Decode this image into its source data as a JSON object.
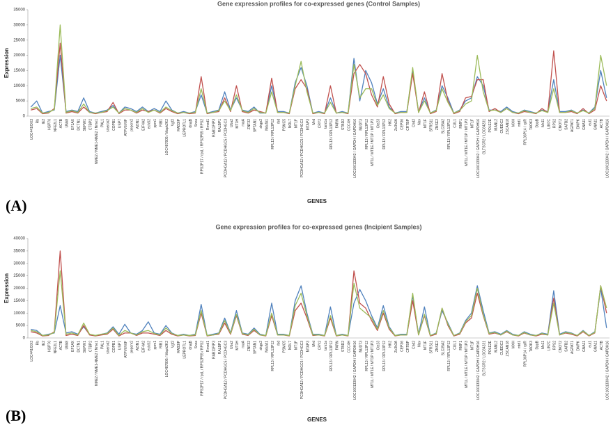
{
  "chart_data": [
    {
      "type": "line",
      "panel_label": "(A)",
      "title": "Gene expression profiles for co-expressed genes (Control Samples)",
      "y_label": "Expression",
      "x_label": "GENES",
      "categories": [
        "LOC441/DX3",
        "Rb",
        "IE2",
        "HSP70",
        "NFE2L1",
        "ACTB",
        "UNk8",
        "EF1AX",
        "DCTN1",
        "SEPW1",
        "CTBP2",
        "NME2 / NME1-NME2 / Nme1",
        "PAL1",
        "sinerok2",
        "COPB1",
        "USP7",
        "ATPV6V0F",
        "pepcrv2",
        "AZIN1",
        "EIF4A2",
        "echS2",
        "ppm1",
        "RIB1",
        "LOC487805 / Mapk2K2",
        "Vgf2",
        "RAB3IP",
        "LEPROTL1",
        "dnajB",
        "Snca",
        "RPS2P17 / rpsL / RPS2P55 / RPS2",
        "Rmnd1",
        "RAB11FIP3",
        "RALBP1",
        "PCDHGA12 / PCDHGC5 / PCDHGC3",
        "Uba2",
        "MT1H",
        "rnaA",
        "ZNF32",
        "SPTAN1",
        "akgp2",
        "NdufA1",
        "RPL13 / RPL13P12",
        "rbd",
        "PSMC5",
        "NOL7",
        "MT1F",
        "PCDHGA12 / PCDHGC5 / PCDHGC3",
        "MTAP3",
        "Mrd",
        "CRY2",
        "tars1a",
        "RPL13 / RPL13P12",
        "FARN",
        "STBD2",
        "CCC4H",
        "LOC100133042 / GAPDH / GAPDH16",
        "NUDT3",
        "RPL13 / RPL13P12",
        "MT1L / MT1E / MT1P / MT1P3",
        "Cte23",
        "RPL13 / RPL13P12",
        "HK2",
        "Zc3h3A",
        "CEP36",
        "CRTBP",
        "Chd2",
        "Nav",
        "MT1F",
        "SFRS11",
        "ZNSE2",
        "SLC35A2",
        "RPL13 / RPL13P12",
        "CUL1",
        "RMF1",
        "MT1L / MT1E / MT1P / MT1P3",
        "MT1F",
        "LOC100133042 / GAPDH / GAPDH16",
        "GLTSCR2 / LOC64231",
        "POLE2E",
        "MANL2",
        "CUEDC2",
        "ZSCAN18",
        "MXH",
        "mtd1",
        "RPL36P14 / rplR",
        "TAOK3",
        "DppB",
        "Mx11",
        "LIN7C",
        "RPS2",
        "CNOT2",
        "SAFB2",
        "AGPAT1",
        "DMPK",
        "GNA11",
        "eut1",
        "GNA11",
        "ACTB",
        "LOC100133042 / GAPDH / GAPDH16"
      ],
      "series": [
        {
          "color": "#4f81bd",
          "values": [
            3000,
            5000,
            1000,
            1500,
            2000,
            20000,
            1500,
            2000,
            1500,
            6000,
            1500,
            1000,
            1500,
            2000,
            3500,
            1000,
            3000,
            2500,
            1500,
            3000,
            1500,
            2500,
            1500,
            5000,
            2000,
            1000,
            1500,
            1000,
            1500,
            7000,
            1000,
            1500,
            2000,
            8000,
            2000,
            6000,
            2000,
            1500,
            3000,
            1000,
            1000,
            10000,
            1500,
            1500,
            1000,
            11000,
            16000,
            10000,
            1000,
            1500,
            1000,
            6000,
            1000,
            1500,
            1000,
            19000,
            5000,
            15000,
            11000,
            4000,
            9000,
            3000,
            1000,
            1500,
            1500,
            15000,
            1500,
            6000,
            1000,
            2000,
            10000,
            6000,
            1000,
            2000,
            5000,
            6000,
            13000,
            10000,
            2000,
            2000,
            1500,
            3000,
            1500,
            1000,
            2000,
            1500,
            1000,
            2000,
            1500,
            12000,
            1500,
            1500,
            2000,
            1000,
            2000,
            1000,
            3000,
            15000,
            6000
          ]
        },
        {
          "color": "#c0504d",
          "values": [
            2000,
            2500,
            800,
            1000,
            2500,
            24000,
            1000,
            1500,
            1000,
            3000,
            1200,
            800,
            1200,
            1500,
            4500,
            800,
            2000,
            2000,
            1000,
            2000,
            1500,
            2000,
            1000,
            2500,
            1500,
            800,
            1200,
            800,
            1000,
            13000,
            800,
            1200,
            1500,
            6000,
            1500,
            10000,
            1500,
            1000,
            2000,
            1500,
            1000,
            12500,
            1200,
            1200,
            800,
            9000,
            12000,
            9000,
            800,
            1200,
            800,
            10000,
            1000,
            1200,
            800,
            14000,
            17000,
            14000,
            7000,
            3000,
            13000,
            4000,
            800,
            1200,
            1200,
            14000,
            1200,
            8000,
            800,
            1500,
            14000,
            5000,
            800,
            1500,
            6000,
            6500,
            12000,
            12000,
            1500,
            2500,
            1200,
            2500,
            1200,
            800,
            1500,
            1200,
            800,
            2500,
            1200,
            21500,
            1200,
            1200,
            1500,
            800,
            2500,
            800,
            2000,
            10000,
            5000
          ]
        },
        {
          "color": "#9bbb59",
          "values": [
            2500,
            3000,
            1000,
            1200,
            2200,
            30000,
            1200,
            1800,
            1200,
            4000,
            1200,
            1000,
            1200,
            1800,
            3000,
            1000,
            2500,
            2000,
            1200,
            2500,
            1200,
            2000,
            1200,
            3000,
            1800,
            1000,
            1200,
            1000,
            1200,
            9000,
            1000,
            1200,
            1800,
            5000,
            1800,
            7000,
            1800,
            1200,
            2500,
            1200,
            1000,
            8000,
            1200,
            1200,
            1000,
            10000,
            18000,
            8000,
            1000,
            1200,
            1000,
            4500,
            1000,
            1200,
            1000,
            17000,
            6000,
            9000,
            9000,
            3500,
            7000,
            2500,
            1000,
            1200,
            1200,
            16000,
            1200,
            5000,
            1000,
            1800,
            9000,
            4500,
            1000,
            1800,
            4000,
            5000,
            20000,
            8000,
            1800,
            2000,
            1200,
            2500,
            1200,
            1000,
            1800,
            1200,
            1000,
            1800,
            1200,
            9000,
            1200,
            1200,
            1800,
            1000,
            1800,
            1000,
            2500,
            20000,
            10000
          ]
        }
      ],
      "ylim": [
        0,
        35000
      ],
      "yticks": [
        0,
        5000,
        10000,
        15000,
        20000,
        25000,
        30000,
        35000
      ]
    },
    {
      "type": "line",
      "panel_label": "(B)",
      "title": "Gene expression profiles for co-expressed genes (Incipient Samples)",
      "y_label": "Expression",
      "x_label": "GENES",
      "categories": [
        "LOC441/DX3",
        "Rb",
        "IE2",
        "HSP70",
        "NFE2L1",
        "ACTB",
        "UNk8",
        "EF1AX",
        "DCTN1",
        "SEPW1",
        "CTBP2",
        "NME2 / NME1-NME2 / Nme1",
        "PAL1",
        "sinerok2",
        "COPB1",
        "USP7",
        "ATPV6V0F",
        "pepcrv2",
        "AZIN1",
        "EIF4A2",
        "echS2",
        "ppm1",
        "RIB1",
        "LOC487805 / Mapk2K2",
        "Vgf2",
        "RAB3IP",
        "LEPROTL1",
        "dnajB",
        "Snca",
        "RPS2P17 / rpsL / RPS2P55 / RPS2",
        "Rmnd1",
        "RAB11FIP3",
        "RALBP1",
        "PCDHGA12 / PCDHGC5 / PCDHGC3",
        "Uba2",
        "MT1H",
        "rnaA",
        "ZNF32",
        "SPTAN1",
        "akgp2",
        "NdufA1",
        "RPL13 / RPL13P12",
        "rbd",
        "PSMC5",
        "NOL7",
        "MT1F",
        "PCDHGA12 / PCDHGC5 / PCDHGC3",
        "MTAP3",
        "Mrd",
        "CRY2",
        "tars1a",
        "RPL13 / RPL13P12",
        "FARN",
        "STBD2",
        "CCC4H",
        "LOC100133042 / GAPDH / GAPDH16",
        "NUDT3",
        "RPL13 / RPL13P12",
        "MT1L / MT1E / MT1P / MT1P3",
        "Cte23",
        "RPL13 / RPL13P12",
        "HK2",
        "Zc3h3A",
        "CEP36",
        "CRTBP",
        "Chd2",
        "Nav",
        "MT1F",
        "SFRS11",
        "ZNSE2",
        "SLC35A2",
        "RPL13 / RPL13P12",
        "CUL1",
        "RMF1",
        "MT1L / MT1E / MT1P / MT1P3",
        "MT1F",
        "LOC100133042 / GAPDH / GAPDH16",
        "GLTSCR2 / LOC64231",
        "POLE2E",
        "MANL2",
        "CUEDC2",
        "ZSCAN18",
        "MXH",
        "mtd1",
        "RPL36P14 / rplR",
        "TAOK3",
        "DppB",
        "Mx11",
        "LIN7C",
        "RPS2",
        "CNOT2",
        "SAFB2",
        "AGPAT1",
        "DMPK",
        "GNA11",
        "eut1",
        "GNA11",
        "ACTB",
        "LOC100133042 / GAPDH / GAPDH16"
      ],
      "series": [
        {
          "color": "#4f81bd",
          "values": [
            3500,
            3000,
            1000,
            1500,
            2000,
            13000,
            2000,
            2500,
            1500,
            4500,
            1500,
            1000,
            1500,
            2000,
            4500,
            1500,
            5500,
            2000,
            1500,
            3000,
            6500,
            2000,
            1500,
            5000,
            2000,
            1000,
            1500,
            1000,
            1500,
            13500,
            1000,
            1500,
            2000,
            8000,
            2000,
            11000,
            2000,
            1500,
            4000,
            1500,
            1000,
            14000,
            1500,
            1500,
            1000,
            15000,
            21000,
            10000,
            1500,
            1500,
            1000,
            12500,
            1000,
            1500,
            1000,
            14000,
            19500,
            15000,
            9000,
            4000,
            13000,
            4500,
            1000,
            1500,
            1500,
            17000,
            1500,
            12500,
            1000,
            2000,
            11000,
            6000,
            1000,
            2000,
            7000,
            10000,
            21000,
            11000,
            2000,
            2500,
            1500,
            3000,
            1500,
            1000,
            2500,
            1500,
            1000,
            2000,
            1500,
            19000,
            1500,
            2500,
            2000,
            1000,
            3000,
            1000,
            2500,
            20000,
            4000
          ]
        },
        {
          "color": "#c0504d",
          "values": [
            2500,
            2000,
            800,
            1000,
            2500,
            35000,
            1000,
            1500,
            1000,
            5000,
            1200,
            800,
            1200,
            1500,
            3500,
            800,
            2000,
            2000,
            1000,
            2000,
            2000,
            1500,
            1000,
            3000,
            1500,
            800,
            1200,
            800,
            1000,
            10000,
            800,
            1200,
            1500,
            6000,
            1500,
            9000,
            1500,
            1000,
            3000,
            1200,
            800,
            9000,
            1200,
            1200,
            800,
            11000,
            14000,
            8000,
            1000,
            1200,
            800,
            8000,
            800,
            1200,
            800,
            27000,
            14000,
            12000,
            7000,
            3000,
            10000,
            3500,
            800,
            1200,
            1200,
            15000,
            1200,
            9000,
            800,
            1500,
            12000,
            5000,
            800,
            1500,
            6000,
            8000,
            18000,
            9000,
            1500,
            2000,
            1200,
            2500,
            1200,
            800,
            2000,
            1200,
            800,
            1500,
            1200,
            16000,
            1200,
            2000,
            1500,
            800,
            2500,
            800,
            2000,
            21000,
            10000
          ]
        },
        {
          "color": "#9bbb59",
          "values": [
            3000,
            2500,
            1000,
            1200,
            2200,
            27000,
            1500,
            2000,
            1200,
            6000,
            1500,
            1000,
            1500,
            1800,
            4000,
            1000,
            3000,
            2000,
            1200,
            2500,
            3000,
            1800,
            1200,
            4000,
            1800,
            1000,
            1200,
            1000,
            1200,
            11000,
            1000,
            1200,
            1800,
            7000,
            1800,
            9500,
            1800,
            1200,
            3500,
            1200,
            1000,
            10000,
            1200,
            1200,
            1000,
            13000,
            18000,
            9000,
            1200,
            1200,
            1000,
            9000,
            1000,
            1200,
            1000,
            22000,
            12000,
            10000,
            8000,
            3500,
            11000,
            4000,
            1000,
            1200,
            1200,
            18000,
            1200,
            9500,
            1000,
            1800,
            12000,
            5500,
            1000,
            1800,
            6500,
            9000,
            20000,
            9500,
            1800,
            2200,
            1200,
            2800,
            1200,
            1000,
            2200,
            1200,
            1000,
            1800,
            1200,
            14000,
            1200,
            2200,
            1800,
            1000,
            2800,
            1000,
            2200,
            21000,
            12000
          ]
        }
      ],
      "ylim": [
        0,
        40000
      ],
      "yticks": [
        0,
        5000,
        10000,
        15000,
        20000,
        25000,
        30000,
        35000,
        40000
      ]
    }
  ]
}
